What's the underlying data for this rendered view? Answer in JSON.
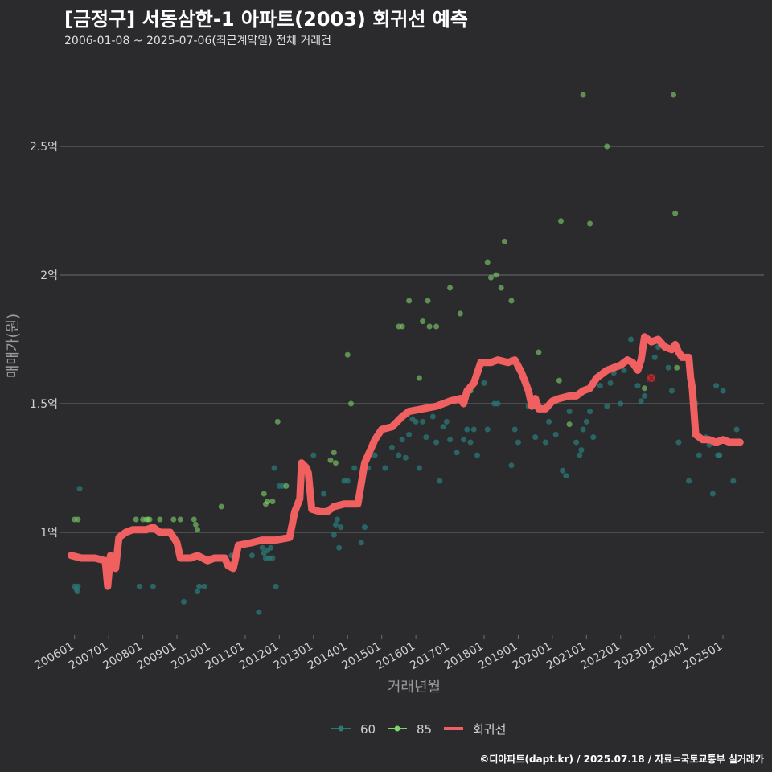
{
  "header": {
    "title": "[금정구] 서동삼한-1 아파트(2003) 회귀선 예측",
    "subtitle": "2006-01-08 ~ 2025-07-06(최근계약일) 전체 거래건"
  },
  "caption": "©디아파트(dapt.kr) / 2025.07.18 / 자료=국토교통부 실거래가",
  "colors": {
    "background": "#2b2b2d",
    "grid": "#6e6e6e",
    "series60": "#2a7a78",
    "series85": "#7ed36a",
    "regression": "#f06060",
    "text": "#d0d0d0"
  },
  "chart_data": {
    "type": "scatter",
    "title": "[금정구] 서동삼한-1 아파트(2003) 회귀선 예측",
    "xlabel": "거래년월",
    "ylabel": "매매가(원)",
    "xlim": [
      2005.7,
      2026.2
    ],
    "ylim": [
      0.6,
      2.85
    ],
    "y_ticks": [
      {
        "value": 1.0,
        "label": "1억"
      },
      {
        "value": 1.5,
        "label": "1.5억"
      },
      {
        "value": 2.0,
        "label": "2억"
      },
      {
        "value": 2.5,
        "label": "2.5억"
      }
    ],
    "x_ticks": [
      {
        "value": 2006.0,
        "label": "200601"
      },
      {
        "value": 2007.0,
        "label": "200701"
      },
      {
        "value": 2008.0,
        "label": "200801"
      },
      {
        "value": 2009.0,
        "label": "200901"
      },
      {
        "value": 2010.0,
        "label": "201001"
      },
      {
        "value": 2011.0,
        "label": "201101"
      },
      {
        "value": 2012.0,
        "label": "201201"
      },
      {
        "value": 2013.0,
        "label": "201301"
      },
      {
        "value": 2014.0,
        "label": "201401"
      },
      {
        "value": 2015.0,
        "label": "201501"
      },
      {
        "value": 2016.0,
        "label": "201601"
      },
      {
        "value": 2017.0,
        "label": "201701"
      },
      {
        "value": 2018.0,
        "label": "201801"
      },
      {
        "value": 2019.0,
        "label": "201901"
      },
      {
        "value": 2020.0,
        "label": "202001"
      },
      {
        "value": 2021.0,
        "label": "202101"
      },
      {
        "value": 2022.0,
        "label": "202201"
      },
      {
        "value": 2023.0,
        "label": "202301"
      },
      {
        "value": 2024.0,
        "label": "202401"
      },
      {
        "value": 2025.0,
        "label": "202501"
      }
    ],
    "legend": [
      {
        "name": "60",
        "kind": "point-line"
      },
      {
        "name": "85",
        "kind": "point-line"
      },
      {
        "name": "회귀선",
        "kind": "line"
      }
    ],
    "series": [
      {
        "name": "60",
        "points": [
          [
            2006.0,
            0.79
          ],
          [
            2006.05,
            0.78
          ],
          [
            2006.08,
            0.77
          ],
          [
            2006.1,
            0.79
          ],
          [
            2006.15,
            1.17
          ],
          [
            2007.9,
            0.79
          ],
          [
            2008.3,
            0.79
          ],
          [
            2009.2,
            0.73
          ],
          [
            2009.6,
            0.77
          ],
          [
            2009.65,
            0.79
          ],
          [
            2009.8,
            0.79
          ],
          [
            2010.6,
            0.91
          ],
          [
            2011.2,
            0.91
          ],
          [
            2011.4,
            0.69
          ],
          [
            2011.5,
            0.94
          ],
          [
            2011.55,
            0.92
          ],
          [
            2011.6,
            0.9
          ],
          [
            2011.65,
            0.93
          ],
          [
            2011.7,
            0.9
          ],
          [
            2011.75,
            0.94
          ],
          [
            2011.8,
            0.9
          ],
          [
            2011.9,
            0.79
          ],
          [
            2012.0,
            1.18
          ],
          [
            2012.1,
            1.18
          ],
          [
            2011.85,
            1.25
          ],
          [
            2013.0,
            1.3
          ],
          [
            2013.3,
            1.15
          ],
          [
            2013.6,
            0.99
          ],
          [
            2013.65,
            1.03
          ],
          [
            2013.7,
            1.05
          ],
          [
            2013.75,
            0.94
          ],
          [
            2013.8,
            1.02
          ],
          [
            2013.9,
            1.2
          ],
          [
            2014.0,
            1.2
          ],
          [
            2014.2,
            1.25
          ],
          [
            2014.4,
            0.96
          ],
          [
            2014.5,
            1.02
          ],
          [
            2014.6,
            1.25
          ],
          [
            2014.8,
            1.3
          ],
          [
            2015.1,
            1.25
          ],
          [
            2015.3,
            1.33
          ],
          [
            2015.5,
            1.3
          ],
          [
            2015.6,
            1.36
          ],
          [
            2015.7,
            1.29
          ],
          [
            2015.8,
            1.38
          ],
          [
            2015.9,
            1.44
          ],
          [
            2016.0,
            1.43
          ],
          [
            2016.1,
            1.25
          ],
          [
            2016.2,
            1.43
          ],
          [
            2016.3,
            1.37
          ],
          [
            2016.5,
            1.45
          ],
          [
            2016.6,
            1.35
          ],
          [
            2016.7,
            1.2
          ],
          [
            2016.8,
            1.41
          ],
          [
            2016.9,
            1.43
          ],
          [
            2017.0,
            1.36
          ],
          [
            2017.2,
            1.31
          ],
          [
            2017.4,
            1.36
          ],
          [
            2017.5,
            1.4
          ],
          [
            2017.6,
            1.35
          ],
          [
            2017.7,
            1.4
          ],
          [
            2017.8,
            1.3
          ],
          [
            2018.0,
            1.58
          ],
          [
            2018.1,
            1.4
          ],
          [
            2018.3,
            1.5
          ],
          [
            2018.4,
            1.5
          ],
          [
            2018.8,
            1.26
          ],
          [
            2018.9,
            1.4
          ],
          [
            2019.0,
            1.35
          ],
          [
            2019.3,
            1.49
          ],
          [
            2019.5,
            1.37
          ],
          [
            2019.8,
            1.35
          ],
          [
            2019.9,
            1.43
          ],
          [
            2020.1,
            1.38
          ],
          [
            2020.3,
            1.24
          ],
          [
            2020.4,
            1.22
          ],
          [
            2020.5,
            1.47
          ],
          [
            2020.7,
            1.35
          ],
          [
            2020.8,
            1.3
          ],
          [
            2020.85,
            1.32
          ],
          [
            2020.9,
            1.4
          ],
          [
            2021.0,
            1.43
          ],
          [
            2021.1,
            1.47
          ],
          [
            2021.2,
            1.37
          ],
          [
            2021.4,
            1.57
          ],
          [
            2021.6,
            1.49
          ],
          [
            2021.7,
            1.58
          ],
          [
            2021.8,
            1.62
          ],
          [
            2022.0,
            1.5
          ],
          [
            2022.1,
            1.63
          ],
          [
            2022.3,
            1.75
          ],
          [
            2022.5,
            1.57
          ],
          [
            2022.6,
            1.51
          ],
          [
            2022.7,
            1.53
          ],
          [
            2023.0,
            1.68
          ],
          [
            2023.1,
            1.72
          ],
          [
            2023.4,
            1.64
          ],
          [
            2023.5,
            1.55
          ],
          [
            2023.7,
            1.35
          ],
          [
            2023.8,
            1.68
          ],
          [
            2024.0,
            1.2
          ],
          [
            2024.2,
            1.5
          ],
          [
            2024.3,
            1.3
          ],
          [
            2024.5,
            1.37
          ],
          [
            2024.6,
            1.34
          ],
          [
            2024.7,
            1.15
          ],
          [
            2024.8,
            1.57
          ],
          [
            2024.85,
            1.3
          ],
          [
            2024.9,
            1.3
          ],
          [
            2025.0,
            1.55
          ],
          [
            2025.3,
            1.2
          ],
          [
            2025.4,
            1.4
          ]
        ]
      },
      {
        "name": "85",
        "points": [
          [
            2006.0,
            1.05
          ],
          [
            2006.1,
            1.05
          ],
          [
            2007.8,
            1.05
          ],
          [
            2008.0,
            1.05
          ],
          [
            2008.1,
            1.05
          ],
          [
            2008.15,
            1.05
          ],
          [
            2008.2,
            1.05
          ],
          [
            2008.5,
            1.05
          ],
          [
            2008.9,
            1.05
          ],
          [
            2009.1,
            1.05
          ],
          [
            2009.5,
            1.05
          ],
          [
            2009.55,
            1.03
          ],
          [
            2009.6,
            1.01
          ],
          [
            2010.3,
            1.1
          ],
          [
            2011.55,
            1.15
          ],
          [
            2011.6,
            1.11
          ],
          [
            2011.65,
            1.12
          ],
          [
            2011.8,
            1.12
          ],
          [
            2011.95,
            1.43
          ],
          [
            2012.2,
            1.18
          ],
          [
            2013.5,
            1.28
          ],
          [
            2013.6,
            1.31
          ],
          [
            2013.65,
            1.27
          ],
          [
            2014.0,
            1.69
          ],
          [
            2014.1,
            1.5
          ],
          [
            2015.5,
            1.8
          ],
          [
            2015.6,
            1.8
          ],
          [
            2015.8,
            1.9
          ],
          [
            2016.1,
            1.6
          ],
          [
            2016.2,
            1.82
          ],
          [
            2016.35,
            1.9
          ],
          [
            2016.4,
            1.8
          ],
          [
            2016.6,
            1.8
          ],
          [
            2017.0,
            1.95
          ],
          [
            2017.3,
            1.85
          ],
          [
            2017.6,
            1.55
          ],
          [
            2018.1,
            2.05
          ],
          [
            2018.2,
            1.99
          ],
          [
            2018.35,
            2.0
          ],
          [
            2018.5,
            1.95
          ],
          [
            2018.6,
            2.13
          ],
          [
            2018.8,
            1.9
          ],
          [
            2019.6,
            1.7
          ],
          [
            2020.2,
            1.59
          ],
          [
            2020.25,
            2.21
          ],
          [
            2020.5,
            1.42
          ],
          [
            2020.9,
            2.7
          ],
          [
            2021.1,
            2.2
          ],
          [
            2021.6,
            2.5
          ],
          [
            2022.7,
            1.56
          ],
          [
            2023.55,
            2.7
          ],
          [
            2023.6,
            2.24
          ],
          [
            2023.65,
            1.64
          ]
        ]
      }
    ],
    "regression": [
      [
        2005.9,
        0.91
      ],
      [
        2006.2,
        0.9
      ],
      [
        2006.6,
        0.9
      ],
      [
        2006.9,
        0.89
      ],
      [
        2006.97,
        0.79
      ],
      [
        2007.05,
        0.91
      ],
      [
        2007.2,
        0.86
      ],
      [
        2007.3,
        0.98
      ],
      [
        2007.5,
        1.0
      ],
      [
        2007.7,
        1.01
      ],
      [
        2008.1,
        1.01
      ],
      [
        2008.3,
        1.02
      ],
      [
        2008.5,
        1.0
      ],
      [
        2008.8,
        1.0
      ],
      [
        2009.0,
        0.96
      ],
      [
        2009.1,
        0.9
      ],
      [
        2009.4,
        0.9
      ],
      [
        2009.6,
        0.91
      ],
      [
        2009.9,
        0.89
      ],
      [
        2010.1,
        0.9
      ],
      [
        2010.4,
        0.9
      ],
      [
        2010.5,
        0.87
      ],
      [
        2010.65,
        0.86
      ],
      [
        2010.8,
        0.95
      ],
      [
        2011.2,
        0.96
      ],
      [
        2011.5,
        0.97
      ],
      [
        2011.9,
        0.97
      ],
      [
        2012.3,
        0.98
      ],
      [
        2012.45,
        1.08
      ],
      [
        2012.6,
        1.13
      ],
      [
        2012.65,
        1.27
      ],
      [
        2012.8,
        1.25
      ],
      [
        2012.85,
        1.23
      ],
      [
        2012.95,
        1.09
      ],
      [
        2013.2,
        1.08
      ],
      [
        2013.4,
        1.08
      ],
      [
        2013.6,
        1.1
      ],
      [
        2013.9,
        1.11
      ],
      [
        2014.3,
        1.11
      ],
      [
        2014.5,
        1.27
      ],
      [
        2014.6,
        1.3
      ],
      [
        2014.8,
        1.36
      ],
      [
        2015.0,
        1.4
      ],
      [
        2015.3,
        1.41
      ],
      [
        2015.6,
        1.45
      ],
      [
        2015.8,
        1.47
      ],
      [
        2016.2,
        1.48
      ],
      [
        2016.6,
        1.49
      ],
      [
        2017.0,
        1.51
      ],
      [
        2017.3,
        1.52
      ],
      [
        2017.4,
        1.5
      ],
      [
        2017.5,
        1.55
      ],
      [
        2017.7,
        1.58
      ],
      [
        2017.9,
        1.66
      ],
      [
        2018.2,
        1.66
      ],
      [
        2018.4,
        1.67
      ],
      [
        2018.7,
        1.66
      ],
      [
        2018.9,
        1.67
      ],
      [
        2019.1,
        1.62
      ],
      [
        2019.3,
        1.55
      ],
      [
        2019.4,
        1.49
      ],
      [
        2019.5,
        1.52
      ],
      [
        2019.6,
        1.48
      ],
      [
        2019.8,
        1.48
      ],
      [
        2020.0,
        1.51
      ],
      [
        2020.2,
        1.52
      ],
      [
        2020.5,
        1.53
      ],
      [
        2020.7,
        1.53
      ],
      [
        2020.9,
        1.55
      ],
      [
        2021.1,
        1.56
      ],
      [
        2021.3,
        1.6
      ],
      [
        2021.6,
        1.63
      ],
      [
        2021.8,
        1.64
      ],
      [
        2022.0,
        1.65
      ],
      [
        2022.2,
        1.67
      ],
      [
        2022.35,
        1.66
      ],
      [
        2022.5,
        1.63
      ],
      [
        2022.6,
        1.67
      ],
      [
        2022.7,
        1.76
      ],
      [
        2022.9,
        1.74
      ],
      [
        2023.1,
        1.75
      ],
      [
        2023.3,
        1.72
      ],
      [
        2023.5,
        1.71
      ],
      [
        2023.6,
        1.73
      ],
      [
        2023.7,
        1.7
      ],
      [
        2023.8,
        1.68
      ],
      [
        2024.0,
        1.68
      ],
      [
        2024.05,
        1.6
      ],
      [
        2024.1,
        1.56
      ],
      [
        2024.2,
        1.38
      ],
      [
        2024.4,
        1.36
      ],
      [
        2024.6,
        1.36
      ],
      [
        2024.8,
        1.35
      ],
      [
        2025.0,
        1.36
      ],
      [
        2025.2,
        1.35
      ],
      [
        2025.5,
        1.35
      ]
    ],
    "highlight": [
      2022.9,
      1.6
    ]
  }
}
